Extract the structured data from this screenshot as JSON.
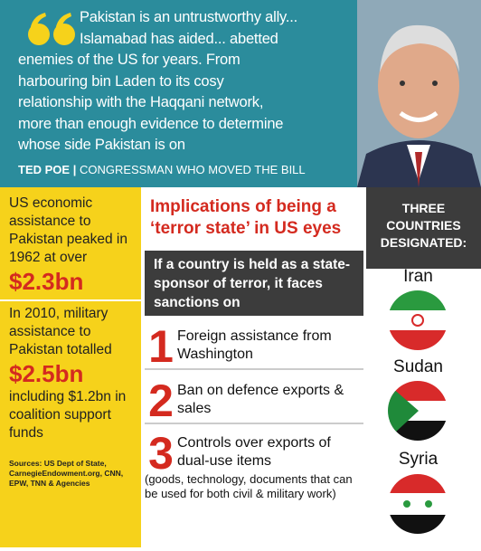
{
  "quote": {
    "lines": [
      "Pakistan is an untrustworthy ally...",
      "Islamabad has aided... abetted",
      "enemies of the US for years. From",
      "harbouring bin Laden to its cosy",
      "relationship with the Haqqani network,",
      "more than enough evidence to determine",
      "whose side Pakistan is on"
    ],
    "name": "TED POE",
    "role": "CONGRESSMAN WHO MOVED THE BILL"
  },
  "aid": {
    "text1": "US economic assistance to Pakistan peaked in 1962 at over",
    "figure1": "$2.3bn",
    "text2": "In 2010, military assistance to Pakistan totalled",
    "figure2": "$2.5bn",
    "text3": "including $1.2bn in coalition support funds",
    "sources": "Sources: US Dept of State, CarnegieEndowment.org, CNN, EPW, TNN & Agencies"
  },
  "implications": {
    "title": "Implications of being a ‘terror state’ in US eyes",
    "intro": "If a country is held as a state-sponsor of terror, it faces sanctions on",
    "sanctions": [
      {
        "number": "1",
        "text": "Foreign assistance from Washington"
      },
      {
        "number": "2",
        "text": "Ban on defence exports & sales"
      },
      {
        "number": "3",
        "text": "Controls over exports of dual-use items",
        "note": "(goods, technology, documents that can be used for both civil & military work)"
      }
    ]
  },
  "designated": {
    "title": "THREE COUNTRIES DESIGNATED:",
    "countries": [
      "Iran",
      "Sudan",
      "Syria"
    ]
  }
}
